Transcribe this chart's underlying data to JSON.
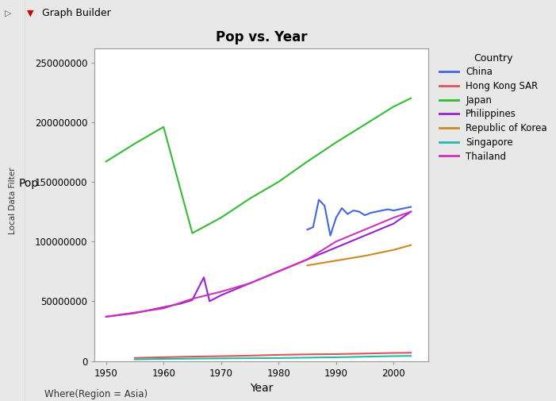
{
  "title": "Pop vs. Year",
  "xlabel": "Year",
  "ylabel": "Pop",
  "footnote": "Where(Region = Asia)",
  "legend_title": "Country",
  "outer_bg": "#d8d8d8",
  "inner_bg": "#e8e8e8",
  "plot_bg": "#ffffff",
  "countries": {
    "China": {
      "color": "#4466dd",
      "years": [
        1985,
        1986,
        1987,
        1988,
        1989,
        1990,
        1991,
        1992,
        1993,
        1994,
        1995,
        1996,
        1997,
        1998,
        1999,
        2000,
        2001,
        2002,
        2003
      ],
      "pop": [
        110000000,
        112000000,
        135000000,
        130000000,
        105000000,
        120000000,
        128000000,
        123000000,
        126000000,
        125000000,
        122000000,
        124000000,
        125000000,
        126000000,
        127000000,
        126000000,
        127000000,
        128000000,
        129000000
      ]
    },
    "Hong Kong SAR": {
      "color": "#dd5555",
      "years": [
        1955,
        1960,
        1965,
        1970,
        1975,
        1980,
        1985,
        1990,
        1995,
        2000,
        2003
      ],
      "pop": [
        2490000,
        3075000,
        3600000,
        3959000,
        4395000,
        5063000,
        5456000,
        5704000,
        6156000,
        6665000,
        6803000
      ]
    },
    "Japan": {
      "color": "#33bb33",
      "years": [
        1950,
        1955,
        1960,
        1965,
        1970,
        1975,
        1980,
        1985,
        1990,
        1995,
        2000,
        2003
      ],
      "pop": [
        167000000,
        182000000,
        196000000,
        107000000,
        120000000,
        136000000,
        150000000,
        167000000,
        183000000,
        198000000,
        213000000,
        220000000
      ]
    },
    "Philippines": {
      "color": "#9922cc",
      "years": [
        1950,
        1955,
        1960,
        1963,
        1965,
        1967,
        1968,
        1970,
        1975,
        1980,
        1985,
        1990,
        1995,
        2000,
        2003
      ],
      "pop": [
        37000000,
        40000000,
        45000000,
        48000000,
        51000000,
        70000000,
        50000000,
        55000000,
        65000000,
        75000000,
        85000000,
        95000000,
        105000000,
        115000000,
        125000000
      ]
    },
    "Republic of Korea": {
      "color": "#cc8822",
      "years": [
        1985,
        1990,
        1995,
        2000,
        2003
      ],
      "pop": [
        80000000,
        84000000,
        88000000,
        93000000,
        97000000
      ]
    },
    "Singapore": {
      "color": "#22bbaa",
      "years": [
        1955,
        1960,
        1965,
        1970,
        1975,
        1980,
        1985,
        1990,
        1995,
        2000,
        2003
      ],
      "pop": [
        1305000,
        1646000,
        1887000,
        2075000,
        2263000,
        2414000,
        2735000,
        3047000,
        3524000,
        4018000,
        4186000
      ]
    },
    "Thailand": {
      "color": "#cc33bb",
      "years": [
        1950,
        1955,
        1960,
        1965,
        1970,
        1975,
        1980,
        1985,
        1990,
        1995,
        2000,
        2003
      ],
      "pop": [
        37000000,
        40500000,
        44000000,
        52000000,
        58000000,
        65000000,
        75000000,
        85000000,
        100000000,
        110000000,
        120000000,
        125000000
      ]
    }
  },
  "xlim": [
    1948,
    2006
  ],
  "ylim": [
    0,
    262000000
  ],
  "yticks": [
    0,
    50000000,
    100000000,
    150000000,
    200000000,
    250000000
  ],
  "xticks": [
    1950,
    1960,
    1970,
    1980,
    1990,
    2000
  ]
}
